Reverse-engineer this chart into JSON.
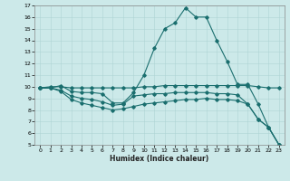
{
  "title": "",
  "xlabel": "Humidex (Indice chaleur)",
  "xlim": [
    -0.5,
    23.5
  ],
  "ylim": [
    5,
    17
  ],
  "xticks": [
    0,
    1,
    2,
    3,
    4,
    5,
    6,
    7,
    8,
    9,
    10,
    11,
    12,
    13,
    14,
    15,
    16,
    17,
    18,
    19,
    20,
    21,
    22,
    23
  ],
  "yticks": [
    5,
    6,
    7,
    8,
    9,
    10,
    11,
    12,
    13,
    14,
    15,
    16,
    17
  ],
  "bg_color": "#cce9e9",
  "grid_color": "#aed4d4",
  "line_color": "#1a6e6e",
  "series1_x": [
    0,
    1,
    2,
    3,
    4,
    5,
    6,
    7,
    8,
    9,
    10,
    11,
    12,
    13,
    14,
    15,
    16,
    17,
    18,
    19,
    20,
    21,
    22,
    23
  ],
  "series1_y": [
    9.9,
    9.9,
    10.1,
    9.6,
    9.5,
    9.5,
    9.4,
    8.6,
    8.6,
    9.5,
    11.0,
    13.3,
    15.0,
    15.5,
    16.8,
    16.0,
    16.0,
    14.0,
    12.2,
    10.2,
    10.2,
    8.5,
    6.5,
    5.0
  ],
  "series2_x": [
    0,
    1,
    2,
    3,
    4,
    5,
    6,
    7,
    8,
    9,
    10,
    11,
    12,
    13,
    14,
    15,
    16,
    17,
    18,
    19,
    20,
    21,
    22,
    23
  ],
  "series2_y": [
    9.9,
    10.0,
    10.0,
    9.9,
    9.9,
    9.9,
    9.9,
    9.9,
    9.9,
    9.9,
    10.0,
    10.0,
    10.1,
    10.1,
    10.1,
    10.1,
    10.1,
    10.1,
    10.1,
    10.1,
    10.1,
    10.0,
    9.9,
    9.9
  ],
  "series3_x": [
    0,
    1,
    2,
    3,
    4,
    5,
    6,
    7,
    8,
    9,
    10,
    11,
    12,
    13,
    14,
    15,
    16,
    17,
    18,
    19,
    20,
    21,
    22,
    23
  ],
  "series3_y": [
    9.9,
    9.9,
    9.7,
    9.2,
    9.0,
    8.9,
    8.7,
    8.4,
    8.5,
    9.2,
    9.3,
    9.4,
    9.4,
    9.5,
    9.5,
    9.5,
    9.5,
    9.4,
    9.4,
    9.3,
    8.5,
    7.2,
    6.5,
    5.0
  ],
  "series4_x": [
    0,
    1,
    2,
    3,
    4,
    5,
    6,
    7,
    8,
    9,
    10,
    11,
    12,
    13,
    14,
    15,
    16,
    17,
    18,
    19,
    20,
    21,
    22,
    23
  ],
  "series4_y": [
    9.9,
    9.9,
    9.6,
    8.9,
    8.6,
    8.4,
    8.2,
    8.0,
    8.1,
    8.3,
    8.5,
    8.6,
    8.7,
    8.8,
    8.9,
    8.9,
    9.0,
    8.9,
    8.9,
    8.8,
    8.5,
    7.2,
    6.5,
    5.0
  ]
}
